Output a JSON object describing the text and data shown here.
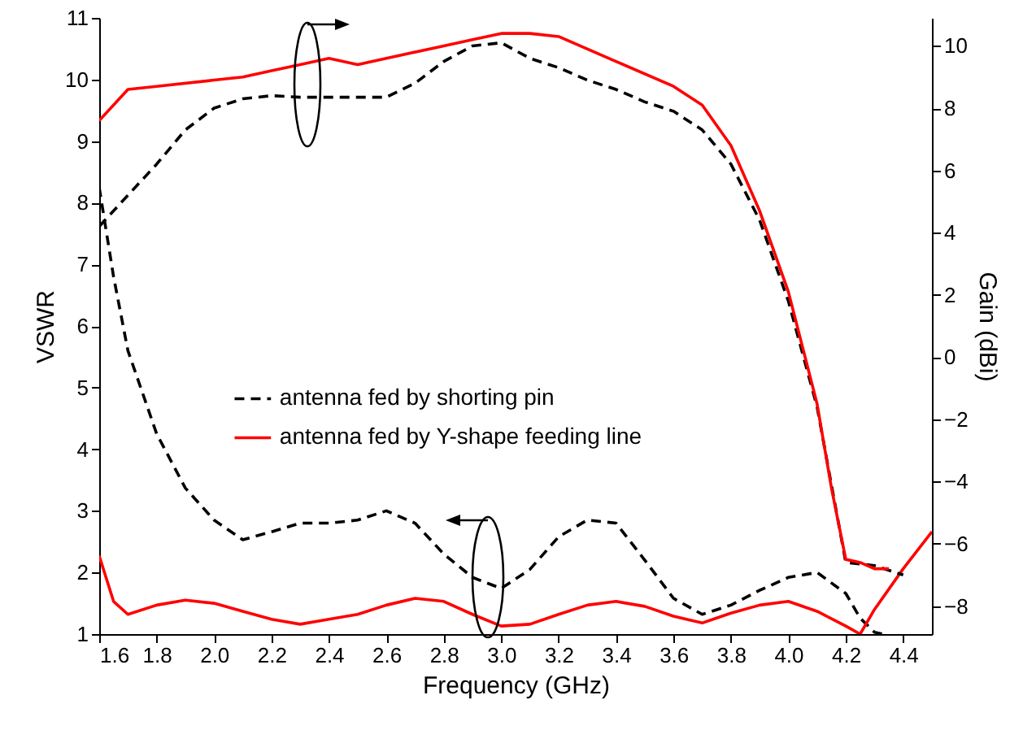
{
  "chart_data": {
    "type": "line",
    "xlabel": "Frequency (GHz)",
    "ylabel": "VSWR",
    "y2label": "Gain (dBi)",
    "xlim": [
      1.6,
      4.5
    ],
    "xticks": [
      1.6,
      1.8,
      {
        "value": 2,
        "label": "2.0"
      },
      2.2,
      2.4,
      2.6,
      2.8,
      {
        "value": 3,
        "label": "3.0"
      },
      3.2,
      3.4,
      3.6,
      3.8,
      {
        "value": 4,
        "label": "4.0"
      },
      4.2,
      4.4
    ],
    "ylim": [
      1,
      11
    ],
    "yticks": [
      1,
      2,
      3,
      4,
      5,
      6,
      7,
      8,
      9,
      10,
      11
    ],
    "y2lim": [
      -8.9,
      10.9
    ],
    "y2ticks": [
      -8,
      -6,
      -4,
      -2,
      0,
      2,
      4,
      6,
      8,
      10
    ],
    "legend": "center",
    "series": [
      {
        "name": "antenna fed by shorting pin",
        "color": "#000000",
        "line_style": "dashed",
        "x": [
          1.6,
          1.65,
          1.7,
          1.8,
          1.9,
          2.0,
          2.1,
          2.2,
          2.3,
          2.4,
          2.5,
          2.6,
          2.7,
          2.8,
          2.9,
          3.0,
          3.1,
          3.2,
          3.3,
          3.4,
          3.5,
          3.6,
          3.7,
          3.8,
          3.9,
          4.0,
          4.1,
          4.2,
          4.25,
          4.3,
          4.33
        ],
        "values": [
          8.25,
          6.8,
          5.6,
          4.25,
          3.37,
          2.85,
          2.53,
          2.66,
          2.8,
          2.8,
          2.85,
          3.0,
          2.8,
          2.3,
          1.92,
          1.74,
          2.05,
          2.58,
          2.85,
          2.8,
          2.2,
          1.58,
          1.32,
          1.47,
          1.71,
          1.92,
          2.0,
          1.66,
          1.26,
          1.03,
          1.0
        ]
      },
      {
        "name": "antenna fed by Y-shape feeding line",
        "color": "#ff0000",
        "line_style": "solid",
        "x": [
          1.6,
          1.65,
          1.7,
          1.8,
          1.9,
          2.0,
          2.1,
          2.2,
          2.3,
          2.4,
          2.5,
          2.6,
          2.7,
          2.8,
          2.9,
          3.0,
          3.1,
          3.2,
          3.3,
          3.4,
          3.5,
          3.6,
          3.7,
          3.8,
          3.9,
          4.0,
          4.1,
          4.2,
          4.25,
          4.3,
          4.4,
          4.5
        ],
        "values": [
          2.27,
          1.53,
          1.32,
          1.47,
          1.55,
          1.5,
          1.37,
          1.24,
          1.16,
          1.24,
          1.32,
          1.47,
          1.58,
          1.53,
          1.32,
          1.13,
          1.16,
          1.32,
          1.47,
          1.53,
          1.45,
          1.29,
          1.18,
          1.34,
          1.47,
          1.53,
          1.37,
          1.13,
          1.0,
          1.4,
          2.06,
          2.66
        ]
      },
      {
        "color": "#000000",
        "line_style": "dashed",
        "axis": "y2",
        "x": [
          1.6,
          1.7,
          1.8,
          1.9,
          2.0,
          2.1,
          2.2,
          2.3,
          2.4,
          2.5,
          2.6,
          2.7,
          2.8,
          2.9,
          3.0,
          3.1,
          3.2,
          3.3,
          3.4,
          3.5,
          3.6,
          3.7,
          3.8,
          3.9,
          4.0,
          4.1,
          4.2,
          4.3,
          4.4
        ],
        "values": [
          4.2,
          5.2,
          6.2,
          7.3,
          8.0,
          8.3,
          8.4,
          8.35,
          8.35,
          8.35,
          8.35,
          8.8,
          9.5,
          10.0,
          10.1,
          9.6,
          9.3,
          8.9,
          8.6,
          8.2,
          7.9,
          7.3,
          6.2,
          4.4,
          1.8,
          -1.6,
          -6.6,
          -6.7,
          -7.0
        ]
      },
      {
        "color": "#ff0000",
        "line_style": "solid",
        "axis": "y2",
        "x": [
          1.6,
          1.7,
          1.8,
          2.0,
          2.1,
          2.2,
          2.3,
          2.4,
          2.5,
          2.6,
          2.8,
          2.9,
          3.0,
          3.1,
          3.2,
          3.4,
          3.6,
          3.7,
          3.8,
          3.9,
          4.0,
          4.1,
          4.15,
          4.2,
          4.25,
          4.3,
          4.35
        ],
        "values": [
          7.6,
          8.6,
          8.7,
          8.9,
          9.0,
          9.2,
          9.4,
          9.6,
          9.4,
          9.6,
          10.0,
          10.2,
          10.4,
          10.4,
          10.3,
          9.5,
          8.7,
          8.1,
          6.8,
          4.7,
          2.1,
          -1.5,
          -4.2,
          -6.5,
          -6.6,
          -6.8,
          -6.8
        ]
      }
    ]
  }
}
